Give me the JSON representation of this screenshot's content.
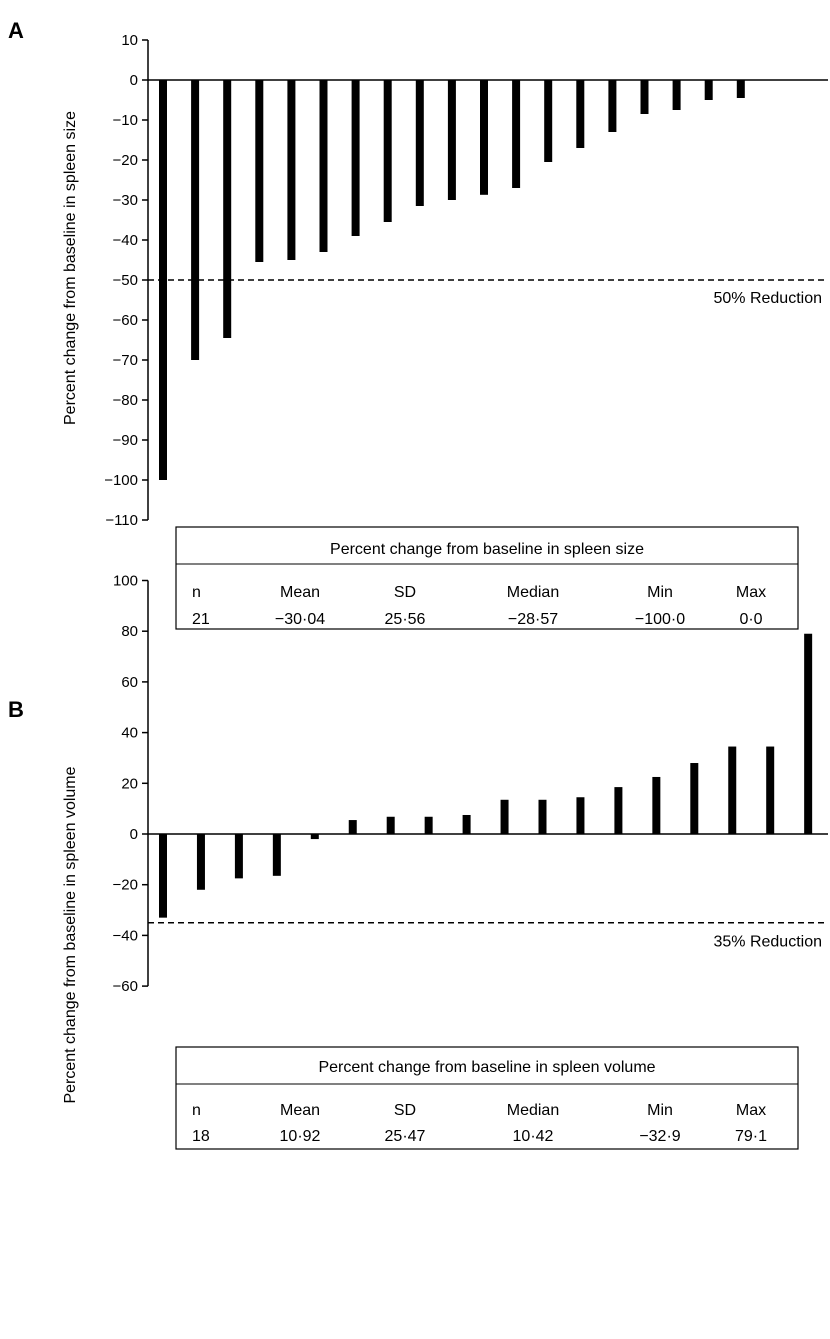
{
  "chart_data": [
    {
      "panel": "A",
      "type": "bar",
      "ylabel": "Percent change from baseline in spleen size",
      "ylim": [
        -110,
        10
      ],
      "yticks": [
        10,
        0,
        -10,
        -20,
        -30,
        -40,
        -50,
        -60,
        -70,
        -80,
        -90,
        -100,
        -110
      ],
      "ytick_labels": [
        "10",
        "0",
        "−10",
        "−20",
        "−30",
        "−40",
        "−50",
        "−60",
        "−70",
        "−80",
        "−90",
        "−100",
        "−110"
      ],
      "values": [
        -100,
        -70,
        -64.5,
        -45.5,
        -45,
        -43,
        -39,
        -35.5,
        -31.5,
        -30,
        -28.7,
        -27,
        -20.5,
        -17,
        -13,
        -8.5,
        -7.5,
        -5,
        -4.5,
        0,
        0
      ],
      "reference": {
        "value": -50,
        "label": "50% Reduction"
      },
      "stats": {
        "title": "Percent change from baseline in spleen size",
        "headers": [
          "n",
          "Mean",
          "SD",
          "Median",
          "Min",
          "Max"
        ],
        "values": [
          "21",
          "−30·04",
          "25·56",
          "−28·57",
          "−100·0",
          "0·0"
        ]
      }
    },
    {
      "panel": "B",
      "type": "bar",
      "ylabel": "Percent change from baseline in spleen volume",
      "ylim": [
        -60,
        100
      ],
      "yticks": [
        100,
        80,
        60,
        40,
        20,
        0,
        -20,
        -40,
        -60
      ],
      "ytick_labels": [
        "100",
        "80",
        "60",
        "40",
        "20",
        "0",
        "−20",
        "−40",
        "−60"
      ],
      "values": [
        -33,
        -22,
        -17.5,
        -16.5,
        -2,
        5.5,
        6.8,
        6.8,
        7.5,
        13.5,
        13.5,
        14.5,
        18.5,
        22.5,
        28,
        34.5,
        34.5,
        79
      ],
      "reference": {
        "value": -35,
        "label": "35% Reduction"
      },
      "stats": {
        "title": "Percent change from baseline in spleen volume",
        "headers": [
          "n",
          "Mean",
          "SD",
          "Median",
          "Min",
          "Max"
        ],
        "values": [
          "18",
          "10·92",
          "25·47",
          "10·42",
          "−32·9",
          "79·1"
        ]
      }
    }
  ]
}
